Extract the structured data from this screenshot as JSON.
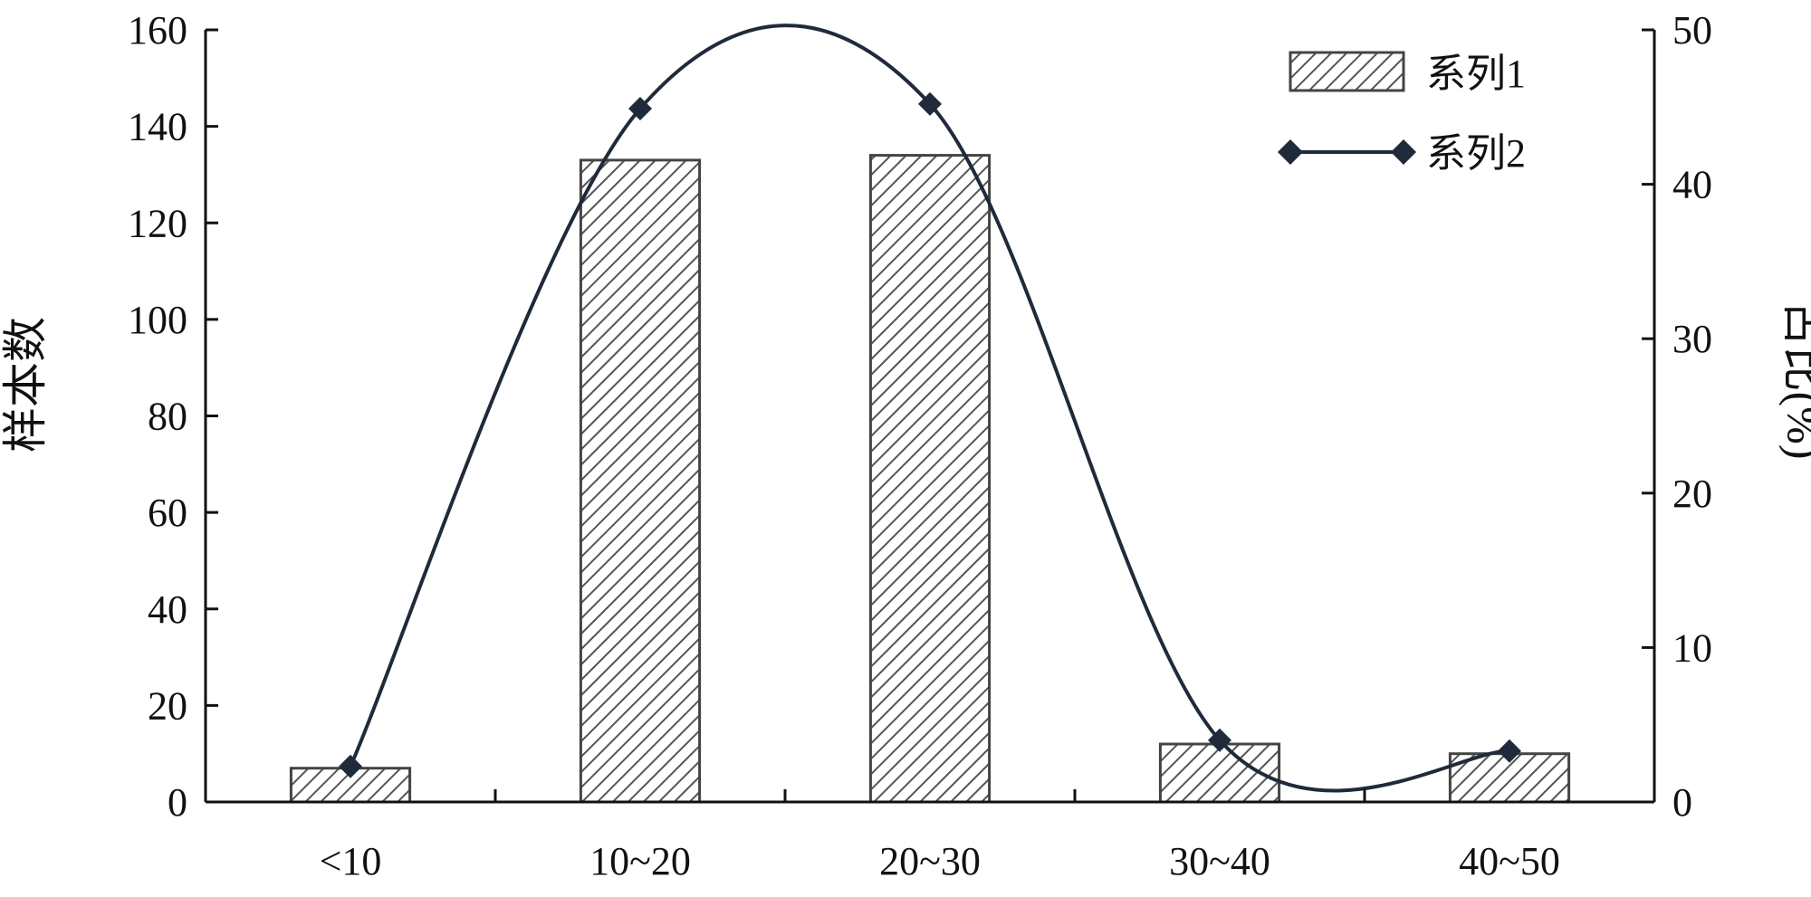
{
  "chart_data": {
    "type": "bar",
    "categories": [
      "<10",
      "10~20",
      "20~30",
      "30~40",
      "40~50"
    ],
    "series": [
      {
        "name": "系列1",
        "type": "bar",
        "axis": "left",
        "values": [
          7,
          133,
          134,
          12,
          10
        ]
      },
      {
        "name": "系列2",
        "type": "line",
        "axis": "right",
        "smooth": true,
        "marker": "diamond",
        "values": [
          2.3,
          44.9,
          45.2,
          4.0,
          3.3
        ]
      }
    ],
    "ylabel": "样本数",
    "y2label": "占比(%)",
    "ylim": [
      0,
      160
    ],
    "y2lim": [
      0,
      50
    ],
    "yticks": [
      "0",
      "20",
      "40",
      "60",
      "80",
      "100",
      "120",
      "140",
      "160"
    ],
    "y2ticks": [
      "0",
      "10",
      "20",
      "30",
      "40",
      "50"
    ],
    "grid": false,
    "legend": "top-right",
    "bar_fill": "hatched",
    "colors": {
      "bar_stroke": "#444444",
      "hatch": "#555555",
      "line": "#1f2a3a",
      "axis": "#111111"
    }
  }
}
